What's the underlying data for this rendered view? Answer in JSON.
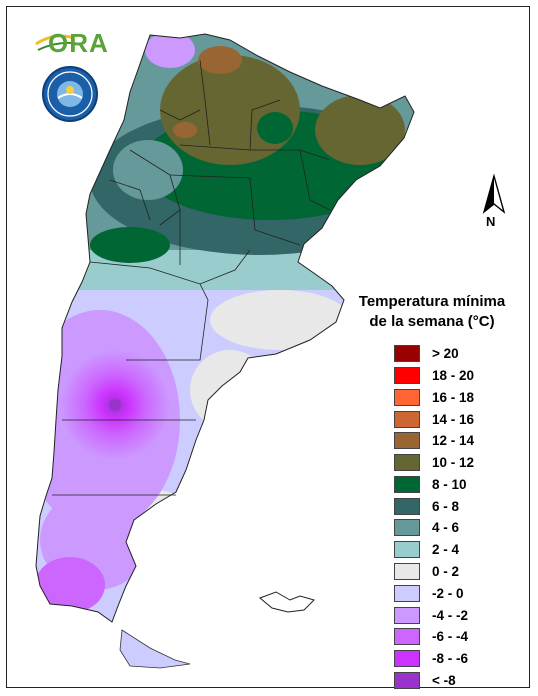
{
  "logos": {
    "ora_text": "ORA",
    "smn_seal_text": "SERVICIO METEOROLÓGICO NACIONAL ARGENTINA"
  },
  "north_arrow": {
    "label": "N"
  },
  "legend": {
    "title_line1": "Temperatura mínima",
    "title_line2": "de la semana (°C)",
    "items": [
      {
        "label": "> 20",
        "color": "#990000"
      },
      {
        "label": "18 - 20",
        "color": "#ff0000"
      },
      {
        "label": "16 - 18",
        "color": "#ff6633"
      },
      {
        "label": "14 - 16",
        "color": "#cc6633"
      },
      {
        "label": "12 - 14",
        "color": "#996633"
      },
      {
        "label": "10 - 12",
        "color": "#666633"
      },
      {
        "label": "8 - 10",
        "color": "#006633"
      },
      {
        "label": "6 - 8",
        "color": "#336666"
      },
      {
        "label": "4 - 6",
        "color": "#669999"
      },
      {
        "label": "2 - 4",
        "color": "#99cccc"
      },
      {
        "label": "0 - 2",
        "color": "#e8e8e8"
      },
      {
        "label": "-2 - 0",
        "color": "#ccccff"
      },
      {
        "label": "-4 - -2",
        "color": "#cc99ff"
      },
      {
        "label": "-6 - -4",
        "color": "#cc66ff"
      },
      {
        "label": "-8 - -6",
        "color": "#cc33ff"
      },
      {
        "label": "< -8",
        "color": "#9933cc"
      }
    ]
  }
}
